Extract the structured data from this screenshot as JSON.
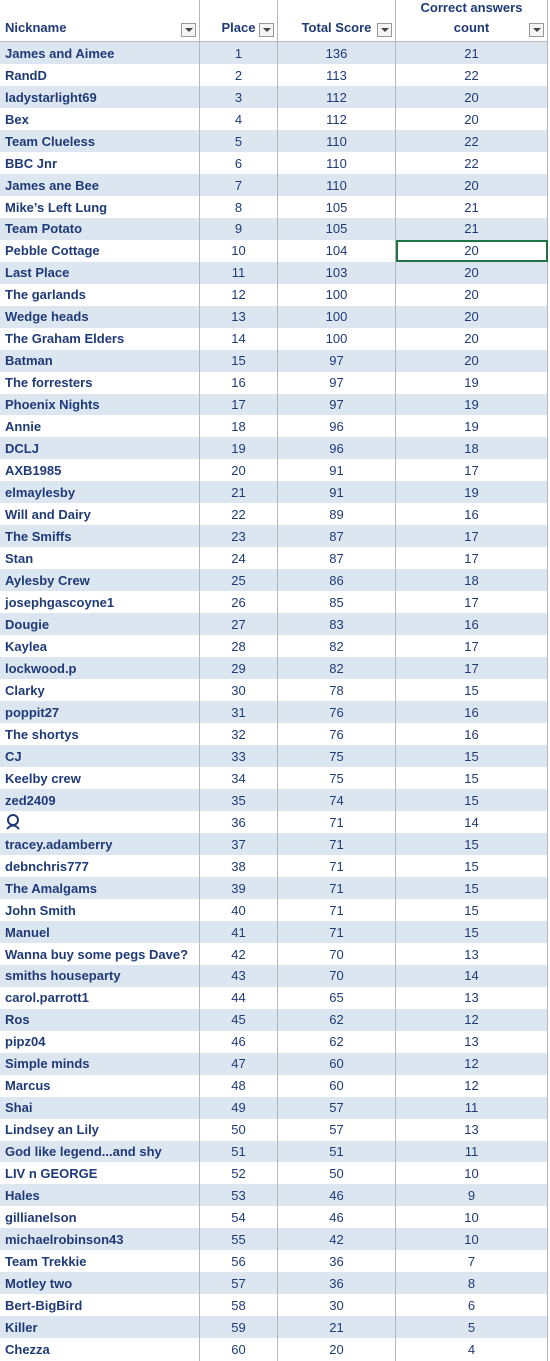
{
  "table": {
    "header": [
      "Nickname",
      "Place",
      "Total Score",
      "Correct answers count"
    ],
    "rows": [
      [
        "James and Aimee",
        1,
        136,
        21
      ],
      [
        "RandD",
        2,
        113,
        22
      ],
      [
        "ladystarlight69",
        3,
        112,
        20
      ],
      [
        "Bex",
        4,
        112,
        20
      ],
      [
        "Team Clueless",
        5,
        110,
        22
      ],
      [
        "BBC Jnr",
        6,
        110,
        22
      ],
      [
        "James ane Bee",
        7,
        110,
        20
      ],
      [
        "Mike’s Left Lung",
        8,
        105,
        21
      ],
      [
        "Team Potato",
        9,
        105,
        21
      ],
      [
        "Pebble Cottage",
        10,
        104,
        20
      ],
      [
        "Last Place",
        11,
        103,
        20
      ],
      [
        "The garlands",
        12,
        100,
        20
      ],
      [
        "Wedge heads",
        13,
        100,
        20
      ],
      [
        "The Graham Elders",
        14,
        100,
        20
      ],
      [
        "Batman",
        15,
        97,
        20
      ],
      [
        "The forresters",
        16,
        97,
        19
      ],
      [
        "Phoenix Nights",
        17,
        97,
        19
      ],
      [
        "Annie",
        18,
        96,
        19
      ],
      [
        "DCLJ",
        19,
        96,
        18
      ],
      [
        "AXB1985",
        20,
        91,
        17
      ],
      [
        "elmaylesby",
        21,
        91,
        19
      ],
      [
        "Will and Dairy",
        22,
        89,
        16
      ],
      [
        "The Smiffs",
        23,
        87,
        17
      ],
      [
        "Stan",
        24,
        87,
        17
      ],
      [
        "Aylesby Crew",
        25,
        86,
        18
      ],
      [
        "josephgascoyne1",
        26,
        85,
        17
      ],
      [
        "Dougie",
        27,
        83,
        16
      ],
      [
        "Kaylea",
        28,
        82,
        17
      ],
      [
        "lockwood.p",
        29,
        82,
        17
      ],
      [
        "Clarky",
        30,
        78,
        15
      ],
      [
        "poppit27",
        31,
        76,
        16
      ],
      [
        "The shortys",
        32,
        76,
        16
      ],
      [
        "CJ",
        33,
        75,
        15
      ],
      [
        "Keelby crew",
        34,
        75,
        15
      ],
      [
        "zed2409",
        35,
        74,
        15
      ],
      [
        null,
        36,
        71,
        14
      ],
      [
        "tracey.adamberry",
        37,
        71,
        15
      ],
      [
        "debnchris777",
        38,
        71,
        15
      ],
      [
        "The Amalgams",
        39,
        71,
        15
      ],
      [
        "John Smith",
        40,
        71,
        15
      ],
      [
        "Manuel",
        41,
        71,
        15
      ],
      [
        "Wanna buy some pegs Dave?",
        42,
        70,
        13
      ],
      [
        "smiths houseparty",
        43,
        70,
        14
      ],
      [
        "carol.parrott1",
        44,
        65,
        13
      ],
      [
        "Ros",
        45,
        62,
        12
      ],
      [
        "pipz04",
        46,
        62,
        13
      ],
      [
        "Simple minds",
        47,
        60,
        12
      ],
      [
        "Marcus",
        48,
        60,
        12
      ],
      [
        "Shai",
        49,
        57,
        11
      ],
      [
        "Lindsey an Lily",
        50,
        57,
        13
      ],
      [
        "God like legend...and shy",
        51,
        51,
        11
      ],
      [
        "LIV n GEORGE",
        52,
        50,
        10
      ],
      [
        "Hales",
        53,
        46,
        9
      ],
      [
        "gillianelson",
        54,
        46,
        10
      ],
      [
        "michaelrobinson43",
        55,
        42,
        10
      ],
      [
        "Team Trekkie",
        56,
        36,
        7
      ],
      [
        "Motley two",
        57,
        36,
        8
      ],
      [
        "Bert-BigBird",
        58,
        30,
        6
      ],
      [
        "Killer",
        59,
        21,
        5
      ],
      [
        "Chezza",
        60,
        20,
        4
      ]
    ]
  }
}
